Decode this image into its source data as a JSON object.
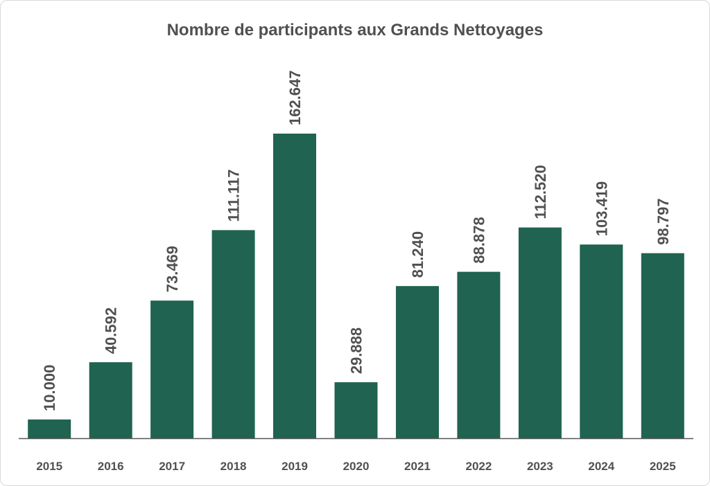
{
  "title": "Nombre de participants aux Grands Nettoyages",
  "colors": {
    "bar": "#1f6350",
    "text": "#505050",
    "axis": "#555555"
  },
  "chart_data": {
    "type": "bar",
    "title": "Nombre de participants aux Grands Nettoyages",
    "xlabel": "",
    "ylabel": "",
    "grid": false,
    "legend": "none",
    "ylim": [
      0,
      190000
    ],
    "categories": [
      "2015",
      "2016",
      "2017",
      "2018",
      "2019",
      "2020",
      "2021",
      "2022",
      "2023",
      "2024",
      "2025"
    ],
    "values": [
      10000,
      40592,
      73469,
      111117,
      162647,
      29888,
      81240,
      88878,
      112520,
      103419,
      98797
    ],
    "value_labels": [
      "10.000",
      "40.592",
      "73.469",
      "111.117",
      "162.647",
      "29.888",
      "81.240",
      "88.878",
      "112.520",
      "103.419",
      "98.797"
    ]
  }
}
